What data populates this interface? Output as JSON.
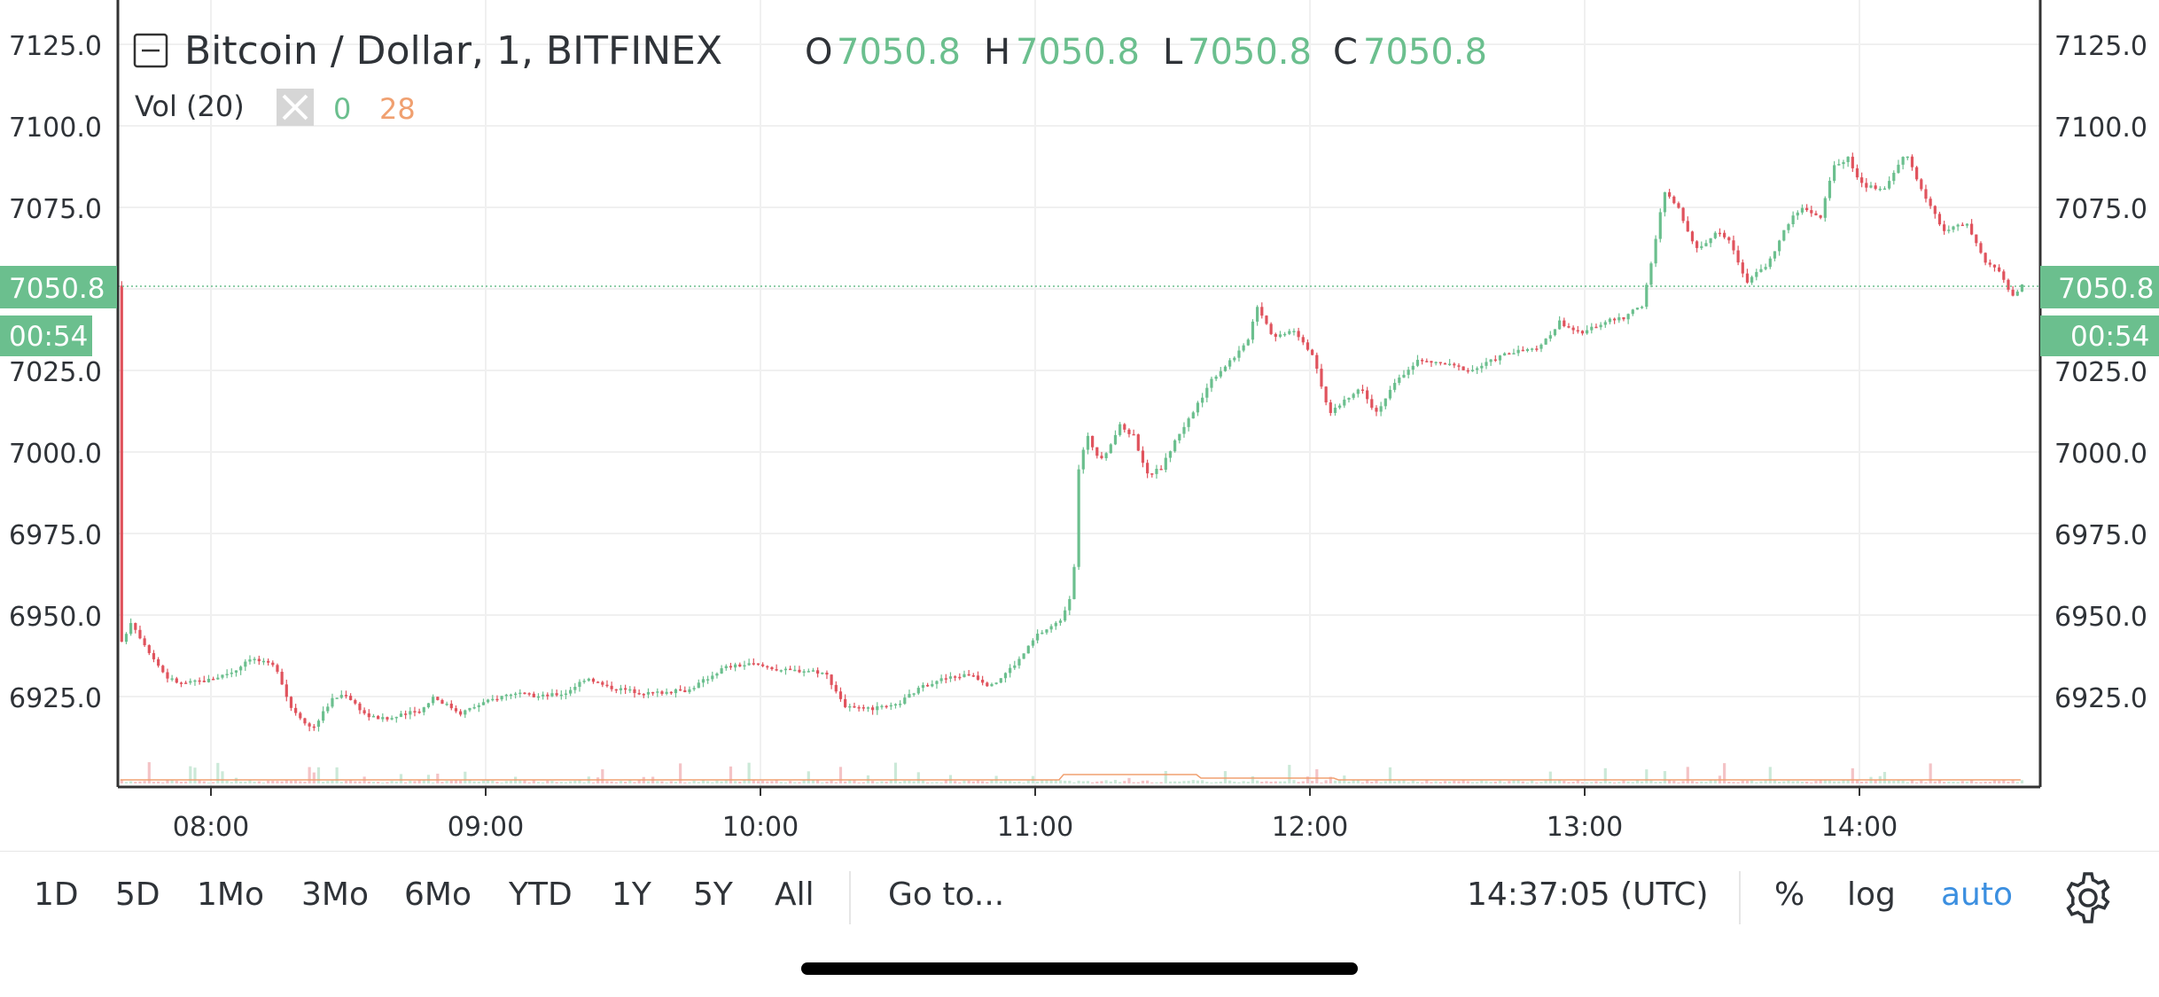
{
  "header": {
    "collapse_icon": "minus-square-icon",
    "symbol": "Bitcoin / Dollar, 1, BITFINEX",
    "o_label": "O",
    "o_value": "7050.8",
    "h_label": "H",
    "h_value": "7050.8",
    "l_label": "L",
    "l_value": "7050.8",
    "c_label": "C",
    "c_value": "7050.8",
    "vol_label": "Vol (20)",
    "vol_close_icon": "close-icon",
    "vol_value": "0",
    "vol_ma": "28"
  },
  "price_badge": {
    "price": "7050.8",
    "countdown": "00:54"
  },
  "toolbar": {
    "ranges": [
      "1D",
      "5D",
      "1Mo",
      "3Mo",
      "6Mo",
      "YTD",
      "1Y",
      "5Y",
      "All"
    ],
    "goto": "Go to...",
    "time": "14:37:05 (UTC)",
    "percent": "%",
    "log": "log",
    "auto": "auto",
    "settings_icon": "gear-icon"
  },
  "colors": {
    "up": "#6bbf8e",
    "down": "#e0535d",
    "accent": "#3b8fe0",
    "vol_ma": "#f0a070",
    "badge": "#6bbf8e"
  },
  "chart_data": {
    "type": "candlestick",
    "y_ticks": [
      "7125.0",
      "7100.0",
      "7075.0",
      "7050.0",
      "7025.0",
      "7000.0",
      "6975.0",
      "6950.0",
      "6925.0"
    ],
    "x_ticks": [
      "08:00",
      "09:00",
      "10:00",
      "11:00",
      "12:00",
      "13:00",
      "14:00"
    ],
    "ylim": [
      6902,
      7140
    ],
    "xlim_hours": [
      7.67,
      14.6
    ],
    "last_price": 7050.8,
    "grid": true,
    "path_keypoints": [
      [
        7.68,
        6940
      ],
      [
        7.72,
        6948
      ],
      [
        7.8,
        6937
      ],
      [
        7.85,
        6931
      ],
      [
        7.9,
        6929
      ],
      [
        8.0,
        6930
      ],
      [
        8.1,
        6933
      ],
      [
        8.15,
        6937
      ],
      [
        8.25,
        6934
      ],
      [
        8.3,
        6922
      ],
      [
        8.38,
        6915
      ],
      [
        8.45,
        6924
      ],
      [
        8.5,
        6926
      ],
      [
        8.58,
        6919
      ],
      [
        8.65,
        6918
      ],
      [
        8.78,
        6921
      ],
      [
        8.82,
        6925
      ],
      [
        8.92,
        6920
      ],
      [
        9.0,
        6923
      ],
      [
        9.1,
        6926
      ],
      [
        9.2,
        6925
      ],
      [
        9.3,
        6926
      ],
      [
        9.38,
        6931
      ],
      [
        9.45,
        6928
      ],
      [
        9.6,
        6926
      ],
      [
        9.75,
        6927
      ],
      [
        9.88,
        6934
      ],
      [
        9.98,
        6935
      ],
      [
        10.1,
        6933
      ],
      [
        10.2,
        6933
      ],
      [
        10.25,
        6932
      ],
      [
        10.32,
        6922
      ],
      [
        10.38,
        6921
      ],
      [
        10.5,
        6922
      ],
      [
        10.58,
        6927
      ],
      [
        10.65,
        6930
      ],
      [
        10.78,
        6932
      ],
      [
        10.85,
        6928
      ],
      [
        10.95,
        6936
      ],
      [
        11.02,
        6944
      ],
      [
        11.1,
        6948
      ],
      [
        11.15,
        6958
      ],
      [
        11.17,
        6995
      ],
      [
        11.2,
        7005
      ],
      [
        11.25,
        6997
      ],
      [
        11.32,
        7008
      ],
      [
        11.37,
        7005
      ],
      [
        11.42,
        6993
      ],
      [
        11.47,
        6995
      ],
      [
        11.53,
        7005
      ],
      [
        11.6,
        7014
      ],
      [
        11.65,
        7022
      ],
      [
        11.72,
        7028
      ],
      [
        11.78,
        7033
      ],
      [
        11.82,
        7045
      ],
      [
        11.88,
        7035
      ],
      [
        11.95,
        7038
      ],
      [
        12.02,
        7030
      ],
      [
        12.08,
        7012
      ],
      [
        12.13,
        7015
      ],
      [
        12.2,
        7020
      ],
      [
        12.25,
        7012
      ],
      [
        12.33,
        7022
      ],
      [
        12.4,
        7028
      ],
      [
        12.5,
        7027
      ],
      [
        12.6,
        7025
      ],
      [
        12.72,
        7030
      ],
      [
        12.85,
        7032
      ],
      [
        12.92,
        7040
      ],
      [
        13.0,
        7036
      ],
      [
        13.08,
        7040
      ],
      [
        13.15,
        7041
      ],
      [
        13.22,
        7045
      ],
      [
        13.26,
        7060
      ],
      [
        13.3,
        7080
      ],
      [
        13.35,
        7075
      ],
      [
        13.42,
        7062
      ],
      [
        13.5,
        7068
      ],
      [
        13.55,
        7063
      ],
      [
        13.6,
        7052
      ],
      [
        13.68,
        7058
      ],
      [
        13.75,
        7070
      ],
      [
        13.8,
        7075
      ],
      [
        13.87,
        7072
      ],
      [
        13.92,
        7088
      ],
      [
        13.97,
        7090
      ],
      [
        14.02,
        7082
      ],
      [
        14.1,
        7080
      ],
      [
        14.18,
        7092
      ],
      [
        14.25,
        7078
      ],
      [
        14.32,
        7068
      ],
      [
        14.4,
        7070
      ],
      [
        14.47,
        7058
      ],
      [
        14.52,
        7055
      ],
      [
        14.57,
        7048
      ],
      [
        14.6,
        7051
      ]
    ],
    "volume_ma_line": "Vol (20)"
  }
}
